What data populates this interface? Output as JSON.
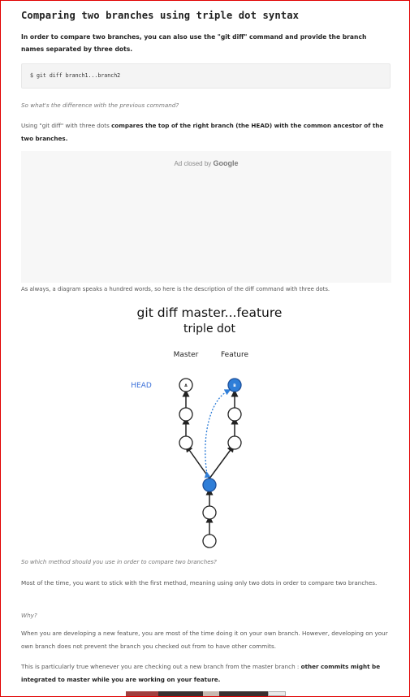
{
  "heading": "Comparing two branches using triple dot syntax",
  "intro": "In order to compare two branches, you can also use the \"git diff\" command and provide the branch names separated by three dots.",
  "code": "$ git diff branch1...branch2",
  "question1": "So what's the difference with the previous command?",
  "explain_prefix": "Using \"git diff\" with three dots ",
  "explain_bold": "compares the top of the right branch (the HEAD) with the common ancestor of the two branches.",
  "ad": {
    "label": "Ad closed by",
    "brand": "Google"
  },
  "diagram_intro": "As always, a diagram speaks a hundred words, so here is the description of the diff command with three dots.",
  "diagram": {
    "title_line1": "git diff master...feature",
    "title_line2": "triple dot",
    "master_label": "Master",
    "feature_label": "Feature",
    "head_label": "HEAD",
    "master_tip": "A",
    "feature_tip": "B",
    "colors": {
      "accent": "#2f7ed8",
      "head": "#3a6fd8"
    }
  },
  "question2": "So which method should you use in order to compare two branches?",
  "para1": "Most of the time, you want to stick with the first method, meaning using only two dots in order to compare two branches.",
  "why": "Why?",
  "para2": "When you are developing a new feature, you are most of the time doing it on your own branch. However, developing on your own branch does not prevent the branch you checked out from to have other commits.",
  "para3_prefix": "This is particularly true whenever you are checking out a new branch from the master branch : ",
  "para3_bold": "other commits might be integrated to master while you are working on your feature."
}
